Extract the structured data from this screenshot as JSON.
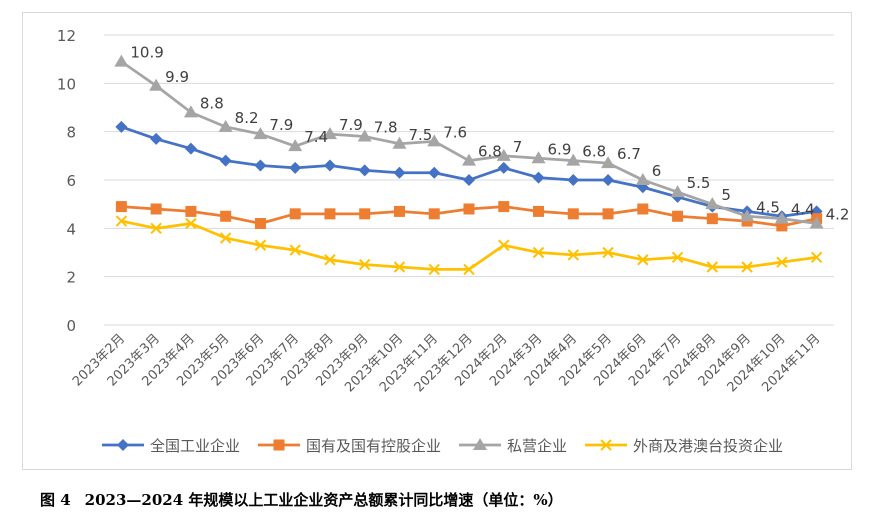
{
  "caption": {
    "figure_no": "图 4",
    "text": "2023—2024 年规模以上工业企业资产总额累计同比增速（单位：%）"
  },
  "colors": {
    "series": [
      "#4472C4",
      "#ED7D31",
      "#A5A5A5",
      "#FFC000"
    ],
    "grid": "#d9d9d9",
    "axis_text": "#595959",
    "label_text": "#404040"
  },
  "chart_data": {
    "type": "line",
    "title": "",
    "xlabel": "",
    "ylabel": "",
    "ylim": [
      0,
      12
    ],
    "yticks": [
      0,
      2,
      4,
      6,
      8,
      10,
      12
    ],
    "grid": true,
    "legend_position": "bottom",
    "categories": [
      "2023年2月",
      "2023年3月",
      "2023年4月",
      "2023年5月",
      "2023年6月",
      "2023年7月",
      "2023年8月",
      "2023年9月",
      "2023年10月",
      "2023年11月",
      "2023年12月",
      "2024年2月",
      "2024年3月",
      "2024年4月",
      "2024年5月",
      "2024年6月",
      "2024年7月",
      "2024年8月",
      "2024年9月",
      "2024年10月",
      "2024年11月"
    ],
    "series": [
      {
        "name": "全国工业企业",
        "marker": "diamond",
        "values": [
          8.2,
          7.7,
          7.3,
          6.8,
          6.6,
          6.5,
          6.6,
          6.4,
          6.3,
          6.3,
          6.0,
          6.5,
          6.1,
          6.0,
          6.0,
          5.7,
          5.3,
          4.9,
          4.7,
          4.5,
          4.7
        ]
      },
      {
        "name": "国有及国有控股企业",
        "marker": "square",
        "values": [
          4.9,
          4.8,
          4.7,
          4.5,
          4.2,
          4.6,
          4.6,
          4.6,
          4.7,
          4.6,
          4.8,
          4.9,
          4.7,
          4.6,
          4.6,
          4.8,
          4.5,
          4.4,
          4.3,
          4.1,
          4.4
        ]
      },
      {
        "name": "私营企业",
        "marker": "triangle",
        "values": [
          10.9,
          9.9,
          8.8,
          8.2,
          7.9,
          7.4,
          7.9,
          7.8,
          7.5,
          7.6,
          6.8,
          7.0,
          6.9,
          6.8,
          6.7,
          6.0,
          5.5,
          5.0,
          4.5,
          4.4,
          4.2
        ],
        "data_labels": [
          "10.9",
          "9.9",
          "8.8",
          "8.2",
          "7.9",
          "7.4",
          "7.9",
          "7.8",
          "7.5",
          "7.6",
          "6.8",
          "7",
          "6.9",
          "6.8",
          "6.7",
          "6",
          "5.5",
          "5",
          "4.5",
          "4.4",
          "4.2"
        ]
      },
      {
        "name": "外商及港澳台投资企业",
        "marker": "x",
        "values": [
          4.3,
          4.0,
          4.2,
          3.6,
          3.3,
          3.1,
          2.7,
          2.5,
          2.4,
          2.3,
          2.3,
          3.3,
          3.0,
          2.9,
          3.0,
          2.7,
          2.8,
          2.4,
          2.4,
          2.6,
          2.8
        ]
      }
    ]
  }
}
